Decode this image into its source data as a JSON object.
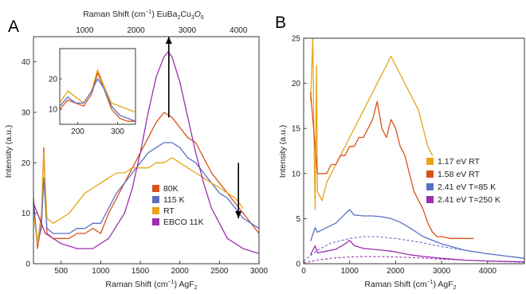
{
  "chart_data": [
    {
      "type": "line",
      "panel_label": "A",
      "xlabel": "Raman Shift (cm",
      "xlabel_sup": "−1",
      "xlabel_tail": ") AgF",
      "xlabel_sub": "2",
      "ylabel": "Intensity (a.u.)",
      "xlim": [
        150,
        3000
      ],
      "ylim": [
        0,
        45
      ],
      "xticks": [
        500,
        1000,
        1500,
        2000,
        2500,
        3000
      ],
      "yticks": [
        0,
        10,
        20,
        30,
        40
      ],
      "top_axis": {
        "label": "Raman Shift (cm",
        "label_sup": "−1",
        "label_tail": ") EuBa",
        "label_sub1": "2",
        "label_mid": "Cu",
        "label_sub2": "3",
        "label_end": "O",
        "label_sub3": "6",
        "xlim": [
          0,
          4400
        ],
        "ticks": [
          1000,
          2000,
          3000,
          4000
        ]
      },
      "legend_position": "center-right",
      "series": [
        {
          "name": "80K",
          "color": "#d95319",
          "x": [
            150,
            200,
            250,
            280,
            320,
            400,
            500,
            600,
            700,
            800,
            900,
            1000,
            1100,
            1200,
            1300,
            1400,
            1500,
            1600,
            1700,
            1800,
            1900,
            2000,
            2100,
            2200,
            2300,
            2400,
            2500,
            2600,
            2700,
            2800,
            2900,
            3000
          ],
          "y": [
            13,
            3,
            8,
            23,
            6,
            5,
            5,
            5,
            6,
            6,
            7,
            6,
            10,
            13,
            16,
            19,
            22,
            25,
            28,
            30,
            29,
            27,
            25,
            24,
            21,
            18,
            16,
            14,
            12,
            10,
            8,
            6
          ]
        },
        {
          "name": "115 K",
          "color": "#5b70c4",
          "x": [
            150,
            200,
            250,
            280,
            320,
            400,
            500,
            600,
            700,
            800,
            900,
            1000,
            1100,
            1200,
            1300,
            1400,
            1500,
            1600,
            1700,
            1800,
            1900,
            2000,
            2100,
            2200,
            2300,
            2400,
            2500,
            2600,
            2700,
            2800,
            2900,
            3000
          ],
          "y": [
            12,
            4,
            7,
            17,
            7,
            6,
            6,
            6,
            7,
            7,
            8,
            8,
            11,
            14,
            16,
            18,
            20,
            22,
            23,
            24,
            24,
            23,
            21,
            20,
            18,
            16,
            14,
            13,
            11,
            9,
            8,
            7
          ]
        },
        {
          "name": "RT",
          "color": "#e8a317",
          "x": [
            150,
            200,
            250,
            280,
            320,
            400,
            500,
            600,
            700,
            800,
            900,
            1000,
            1100,
            1200,
            1300,
            1400,
            1500,
            1600,
            1700,
            1800,
            1900,
            2000,
            2100,
            2200,
            2300,
            2400,
            2500,
            2600,
            2700,
            2800
          ],
          "y": [
            10,
            4,
            10,
            22,
            9,
            8,
            9,
            10,
            12,
            14,
            15,
            16,
            17,
            18,
            18,
            19,
            19,
            19,
            20,
            20,
            21,
            20,
            19,
            18,
            17,
            16,
            15,
            14,
            13,
            11
          ]
        },
        {
          "name": "EBCO 11K",
          "color": "#9b2fae",
          "x": [
            150,
            300,
            500,
            700,
            900,
            1100,
            1300,
            1400,
            1500,
            1600,
            1700,
            1800,
            1850,
            1900,
            2000,
            2100,
            2200,
            2300,
            2400,
            2500,
            2600,
            2800,
            3000
          ],
          "y": [
            12,
            6,
            4,
            3,
            3,
            5,
            10,
            15,
            22,
            30,
            37,
            41,
            42,
            41,
            36,
            29,
            22,
            16,
            11,
            8,
            5,
            3,
            2
          ]
        }
      ],
      "annotations": [
        {
          "type": "arrow-up",
          "x": 1860,
          "from_y": 29,
          "to_y": 45
        },
        {
          "type": "arrow-down",
          "x": 2740,
          "from_y": 20,
          "to_y": 9
        }
      ],
      "inset": {
        "xlim": [
          155,
          345
        ],
        "ylim": [
          5,
          30
        ],
        "xticks": [
          200,
          300
        ],
        "yticks": [
          10,
          20
        ],
        "series": [
          {
            "color": "#e8a317",
            "x": [
              155,
              175,
              195,
              215,
              235,
              250,
              265,
              285,
              305,
              325,
              345
            ],
            "y": [
              12,
              16,
              14,
              12,
              16,
              23,
              18,
              12,
              11,
              10,
              9
            ]
          },
          {
            "color": "#d95319",
            "x": [
              155,
              175,
              195,
              215,
              235,
              250,
              265,
              285,
              305,
              325,
              345
            ],
            "y": [
              10,
              13,
              12,
              11,
              15,
              22,
              17,
              10,
              7,
              6,
              6
            ]
          },
          {
            "color": "#5b70c4",
            "x": [
              155,
              175,
              195,
              215,
              235,
              250,
              265,
              285,
              305,
              325,
              345
            ],
            "y": [
              11,
              14,
              12,
              12,
              16,
              20,
              17,
              11,
              8,
              7,
              6
            ]
          }
        ]
      }
    },
    {
      "type": "line",
      "panel_label": "B",
      "xlabel": "Raman Shift (cm",
      "xlabel_sup": "−1",
      "xlabel_tail": ") AgF",
      "xlabel_sub": "2",
      "ylabel": "Intensity (a.u.)",
      "xlim": [
        0,
        4800
      ],
      "ylim": [
        0,
        25
      ],
      "xticks": [
        0,
        1000,
        2000,
        3000,
        4000
      ],
      "yticks": [
        0,
        5,
        10,
        15,
        20,
        25
      ],
      "legend_position": "center-right",
      "series": [
        {
          "name": "1.17 eV  RT",
          "color": "#e8a317",
          "x": [
            150,
            200,
            230,
            250,
            280,
            300,
            400,
            500,
            600,
            700,
            800,
            900,
            1000,
            1100,
            1200,
            1300,
            1400,
            1500,
            1600,
            1700,
            1800,
            1900,
            2000,
            2100,
            2200,
            2300,
            2400,
            2500,
            2600,
            2700,
            2800
          ],
          "y": [
            18,
            25,
            12,
            6,
            22,
            8,
            7,
            9,
            10,
            11,
            12,
            13,
            14,
            15,
            16,
            17,
            18,
            19,
            20,
            21,
            22,
            23,
            22,
            21,
            20,
            19,
            18,
            17,
            15,
            13,
            12
          ]
        },
        {
          "name": "1.58 eV  RT",
          "color": "#d95319",
          "x": [
            150,
            250,
            300,
            400,
            500,
            600,
            700,
            800,
            900,
            1000,
            1100,
            1200,
            1300,
            1400,
            1500,
            1600,
            1700,
            1800,
            1900,
            2000,
            2100,
            2200,
            2300,
            2400,
            2500,
            2600,
            2700,
            2800,
            2900,
            3000,
            3200,
            3400,
            3700
          ],
          "y": [
            19,
            13,
            10,
            10,
            10,
            11,
            11,
            12,
            12,
            13,
            13,
            14,
            14,
            15,
            16,
            18,
            15,
            14,
            16,
            15,
            13,
            12,
            10,
            8,
            7,
            6,
            4.5,
            3.5,
            3,
            3,
            2.8,
            2.8,
            2.8
          ]
        },
        {
          "name": "2.41 eV T=85 K",
          "color": "#5b70c4",
          "x": [
            150,
            250,
            300,
            500,
            700,
            900,
            1000,
            1100,
            1300,
            1500,
            1700,
            1900,
            2100,
            2300,
            2600,
            3000,
            3500,
            4000,
            4800
          ],
          "y": [
            2.5,
            4,
            3.5,
            4,
            4.5,
            5.5,
            6,
            5.4,
            5.3,
            5.3,
            5.2,
            5,
            4.6,
            4,
            3,
            2.2,
            1.5,
            1.1,
            0.6
          ]
        },
        {
          "name": "2.41 eV T=250 K",
          "color": "#9b2fae",
          "x": [
            150,
            250,
            300,
            500,
            700,
            900,
            1000,
            1100,
            1300,
            1500,
            1700,
            1900,
            2100,
            2300,
            2600,
            3000,
            3500,
            4000,
            4800
          ],
          "y": [
            1,
            2,
            1.2,
            1.4,
            1.6,
            2.2,
            2.6,
            2,
            1.7,
            1.6,
            1.5,
            1.4,
            1.2,
            1.0,
            0.8,
            0.6,
            0.4,
            0.3,
            0.2
          ]
        }
      ],
      "dashed_series": [
        {
          "color": "#5b70c4",
          "x": [
            0,
            300,
            600,
            1000,
            1300,
            1600,
            2000,
            2500,
            3000,
            3500,
            4000,
            4500,
            4800
          ],
          "y": [
            0.3,
            1.5,
            2.3,
            2.8,
            3.0,
            3.0,
            2.8,
            2.4,
            1.9,
            1.5,
            1.1,
            0.8,
            0.6
          ]
        },
        {
          "color": "#9b2fae",
          "x": [
            0,
            300,
            600,
            1000,
            1300,
            1600,
            2000,
            2500,
            3000,
            3500,
            4000,
            4500,
            4800
          ],
          "y": [
            0.1,
            0.4,
            0.6,
            0.75,
            0.8,
            0.8,
            0.75,
            0.65,
            0.5,
            0.4,
            0.3,
            0.2,
            0.15
          ]
        }
      ]
    }
  ]
}
